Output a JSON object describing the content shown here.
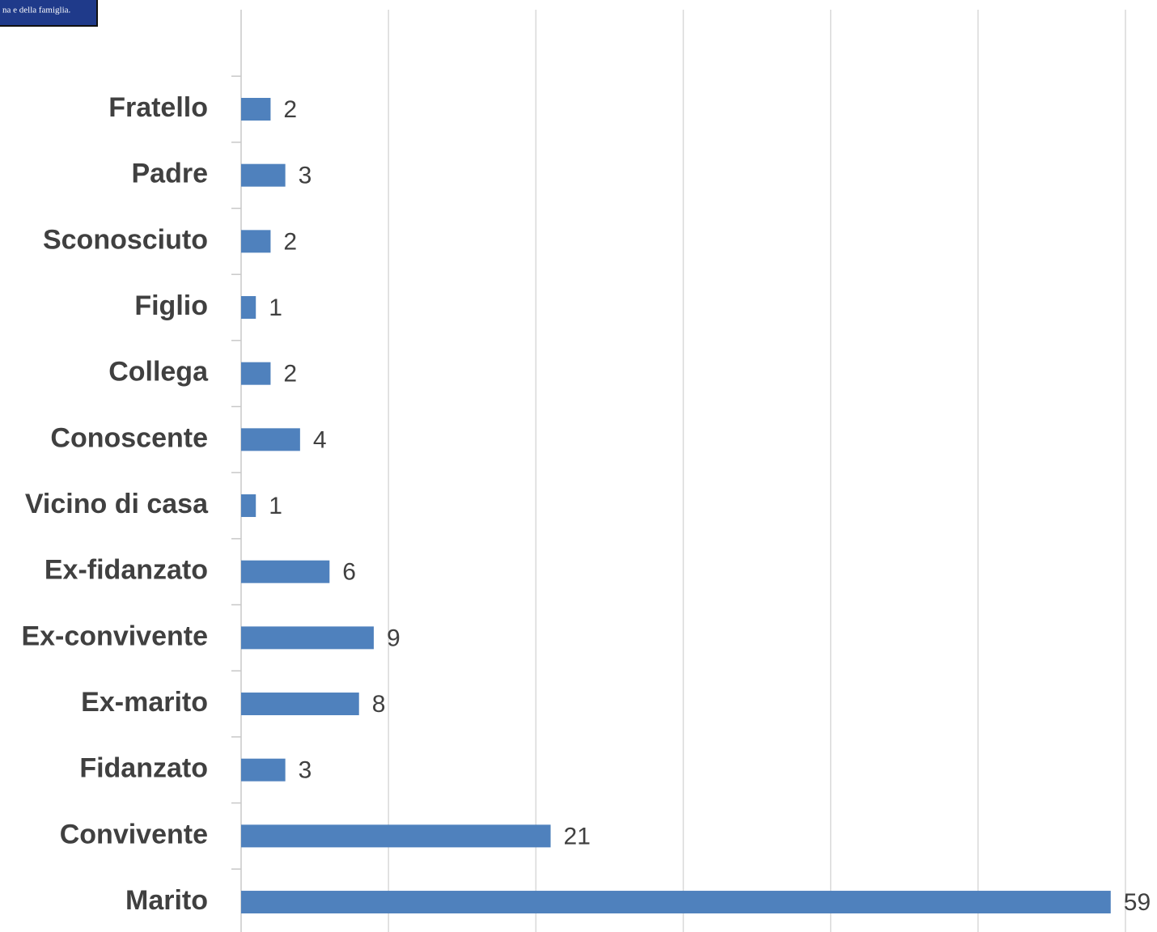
{
  "logo_text": "na e della famiglia.",
  "chart_data": {
    "type": "bar",
    "orientation": "horizontal",
    "categories": [
      "Fratello",
      "Padre",
      "Sconosciuto",
      "Figlio",
      "Collega",
      "Conoscente",
      "Vicino di casa",
      "Ex-fidanzato",
      "Ex-convivente",
      "Ex-marito",
      "Fidanzato",
      "Convivente",
      "Marito"
    ],
    "values": [
      2,
      3,
      2,
      1,
      2,
      4,
      1,
      6,
      9,
      8,
      3,
      21,
      59
    ],
    "color": "#4f81bd",
    "xlim": [
      0,
      60
    ],
    "xticks": [
      0,
      10,
      20,
      30,
      40,
      50,
      60
    ],
    "grid": true
  }
}
